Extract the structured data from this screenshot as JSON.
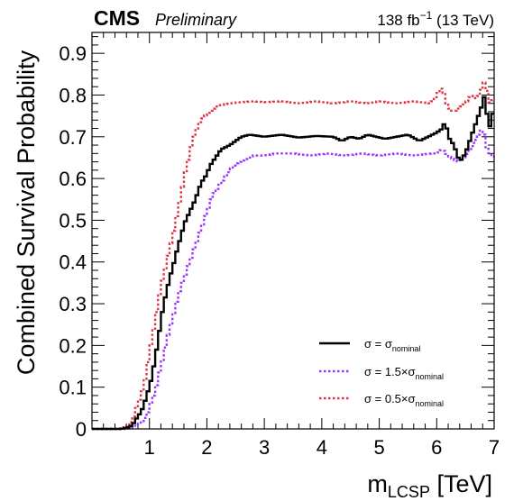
{
  "header": {
    "experiment": "CMS",
    "status": "Preliminary",
    "lumi_value": "138 fb",
    "lumi_exp": "−1",
    "energy": "(13 TeV)"
  },
  "chart_data": {
    "type": "line",
    "xlabel_main": "m",
    "xlabel_sub": "LCSP",
    "xlabel_unit": "[TeV]",
    "ylabel": "Combined Survival Probability",
    "xlim": [
      0,
      7
    ],
    "ylim": [
      0,
      0.95
    ],
    "x_ticks": [
      1,
      2,
      3,
      4,
      5,
      6,
      7
    ],
    "y_ticks": [
      0,
      0.1,
      0.2,
      0.3,
      0.4,
      0.5,
      0.6,
      0.7,
      0.8,
      0.9
    ],
    "y_tick_labels": [
      "0",
      "0.1",
      "0.2",
      "0.3",
      "0.4",
      "0.5",
      "0.6",
      "0.7",
      "0.8",
      "0.9"
    ],
    "bin_width": 0.05,
    "legend_position": "bottom-right",
    "series": [
      {
        "name": "σ = σ_nominal",
        "legend_main": "σ = σ",
        "legend_sub": "nominal",
        "color": "#000000",
        "style": "solid",
        "points": [
          [
            0.0,
            0
          ],
          [
            0.5,
            0
          ],
          [
            0.6,
            0.003
          ],
          [
            0.7,
            0.008
          ],
          [
            0.75,
            0.02
          ],
          [
            0.8,
            0.03
          ],
          [
            0.85,
            0.04
          ],
          [
            0.9,
            0.055
          ],
          [
            0.95,
            0.08
          ],
          [
            1.0,
            0.1
          ],
          [
            1.05,
            0.13
          ],
          [
            1.1,
            0.17
          ],
          [
            1.15,
            0.21
          ],
          [
            1.2,
            0.26
          ],
          [
            1.25,
            0.3
          ],
          [
            1.3,
            0.33
          ],
          [
            1.35,
            0.36
          ],
          [
            1.4,
            0.385
          ],
          [
            1.45,
            0.41
          ],
          [
            1.5,
            0.44
          ],
          [
            1.55,
            0.46
          ],
          [
            1.6,
            0.49
          ],
          [
            1.7,
            0.52
          ],
          [
            1.8,
            0.55
          ],
          [
            1.9,
            0.59
          ],
          [
            2.0,
            0.61
          ],
          [
            2.05,
            0.63
          ],
          [
            2.15,
            0.65
          ],
          [
            2.25,
            0.67
          ],
          [
            2.4,
            0.68
          ],
          [
            2.5,
            0.69
          ],
          [
            2.6,
            0.7
          ],
          [
            2.75,
            0.705
          ],
          [
            3.0,
            0.7
          ],
          [
            3.3,
            0.705
          ],
          [
            3.6,
            0.698
          ],
          [
            3.9,
            0.702
          ],
          [
            4.2,
            0.7
          ],
          [
            4.35,
            0.69
          ],
          [
            4.5,
            0.7
          ],
          [
            4.65,
            0.695
          ],
          [
            4.8,
            0.705
          ],
          [
            4.95,
            0.7
          ],
          [
            5.1,
            0.695
          ],
          [
            5.3,
            0.7
          ],
          [
            5.5,
            0.705
          ],
          [
            5.7,
            0.69
          ],
          [
            5.85,
            0.7
          ],
          [
            6.0,
            0.71
          ],
          [
            6.1,
            0.72
          ],
          [
            6.15,
            0.74
          ],
          [
            6.2,
            0.7
          ],
          [
            6.3,
            0.68
          ],
          [
            6.4,
            0.64
          ],
          [
            6.5,
            0.66
          ],
          [
            6.6,
            0.7
          ],
          [
            6.7,
            0.74
          ],
          [
            6.8,
            0.78
          ],
          [
            6.85,
            0.81
          ],
          [
            6.9,
            0.7
          ],
          [
            6.95,
            0.75
          ],
          [
            7.0,
            0.76
          ]
        ]
      },
      {
        "name": "σ = 1.5×σ_nominal",
        "legend_main": "σ = 1.5×σ",
        "legend_sub": "nominal",
        "color": "#9933ff",
        "style": "dotted",
        "points": [
          [
            0.0,
            0
          ],
          [
            0.6,
            0
          ],
          [
            0.75,
            0.005
          ],
          [
            0.85,
            0.015
          ],
          [
            0.95,
            0.03
          ],
          [
            1.0,
            0.05
          ],
          [
            1.05,
            0.07
          ],
          [
            1.1,
            0.09
          ],
          [
            1.15,
            0.12
          ],
          [
            1.2,
            0.15
          ],
          [
            1.25,
            0.18
          ],
          [
            1.3,
            0.21
          ],
          [
            1.35,
            0.24
          ],
          [
            1.4,
            0.265
          ],
          [
            1.45,
            0.29
          ],
          [
            1.5,
            0.32
          ],
          [
            1.55,
            0.34
          ],
          [
            1.6,
            0.36
          ],
          [
            1.65,
            0.38
          ],
          [
            1.7,
            0.4
          ],
          [
            1.75,
            0.42
          ],
          [
            1.8,
            0.44
          ],
          [
            1.85,
            0.46
          ],
          [
            1.9,
            0.48
          ],
          [
            1.95,
            0.5
          ],
          [
            2.0,
            0.52
          ],
          [
            2.05,
            0.54
          ],
          [
            2.1,
            0.56
          ],
          [
            2.2,
            0.58
          ],
          [
            2.3,
            0.6
          ],
          [
            2.4,
            0.62
          ],
          [
            2.5,
            0.635
          ],
          [
            2.65,
            0.645
          ],
          [
            2.8,
            0.655
          ],
          [
            3.0,
            0.655
          ],
          [
            3.2,
            0.66
          ],
          [
            3.5,
            0.66
          ],
          [
            3.8,
            0.655
          ],
          [
            4.1,
            0.66
          ],
          [
            4.4,
            0.655
          ],
          [
            4.7,
            0.66
          ],
          [
            5.0,
            0.655
          ],
          [
            5.3,
            0.66
          ],
          [
            5.6,
            0.655
          ],
          [
            5.9,
            0.66
          ],
          [
            6.0,
            0.66
          ],
          [
            6.1,
            0.67
          ],
          [
            6.2,
            0.655
          ],
          [
            6.3,
            0.645
          ],
          [
            6.4,
            0.64
          ],
          [
            6.5,
            0.655
          ],
          [
            6.6,
            0.67
          ],
          [
            6.7,
            0.7
          ],
          [
            6.8,
            0.72
          ],
          [
            6.9,
            0.66
          ],
          [
            7.0,
            0.65
          ]
        ]
      },
      {
        "name": "σ = 0.5×σ_nominal",
        "legend_main": "σ = 0.5×σ",
        "legend_sub": "nominal",
        "color": "#dc3545",
        "style": "dotted",
        "points": [
          [
            0.0,
            0
          ],
          [
            0.5,
            0
          ],
          [
            0.6,
            0.005
          ],
          [
            0.7,
            0.02
          ],
          [
            0.75,
            0.04
          ],
          [
            0.8,
            0.06
          ],
          [
            0.85,
            0.08
          ],
          [
            0.9,
            0.1
          ],
          [
            0.95,
            0.14
          ],
          [
            1.0,
            0.18
          ],
          [
            1.05,
            0.22
          ],
          [
            1.1,
            0.26
          ],
          [
            1.15,
            0.3
          ],
          [
            1.2,
            0.34
          ],
          [
            1.25,
            0.37
          ],
          [
            1.3,
            0.4
          ],
          [
            1.35,
            0.43
          ],
          [
            1.4,
            0.46
          ],
          [
            1.45,
            0.49
          ],
          [
            1.5,
            0.53
          ],
          [
            1.55,
            0.56
          ],
          [
            1.6,
            0.6
          ],
          [
            1.65,
            0.63
          ],
          [
            1.7,
            0.66
          ],
          [
            1.75,
            0.69
          ],
          [
            1.8,
            0.71
          ],
          [
            1.85,
            0.73
          ],
          [
            1.9,
            0.74
          ],
          [
            2.0,
            0.755
          ],
          [
            2.1,
            0.765
          ],
          [
            2.2,
            0.775
          ],
          [
            2.4,
            0.78
          ],
          [
            2.6,
            0.783
          ],
          [
            2.8,
            0.785
          ],
          [
            3.0,
            0.783
          ],
          [
            3.3,
            0.785
          ],
          [
            3.6,
            0.78
          ],
          [
            3.9,
            0.785
          ],
          [
            4.2,
            0.78
          ],
          [
            4.5,
            0.785
          ],
          [
            4.8,
            0.78
          ],
          [
            5.0,
            0.785
          ],
          [
            5.3,
            0.78
          ],
          [
            5.6,
            0.785
          ],
          [
            5.9,
            0.78
          ],
          [
            6.0,
            0.8
          ],
          [
            6.1,
            0.82
          ],
          [
            6.15,
            0.79
          ],
          [
            6.2,
            0.77
          ],
          [
            6.3,
            0.76
          ],
          [
            6.4,
            0.77
          ],
          [
            6.5,
            0.78
          ],
          [
            6.6,
            0.8
          ],
          [
            6.7,
            0.79
          ],
          [
            6.8,
            0.82
          ],
          [
            6.85,
            0.84
          ],
          [
            6.9,
            0.78
          ],
          [
            7.0,
            0.79
          ]
        ]
      }
    ]
  }
}
